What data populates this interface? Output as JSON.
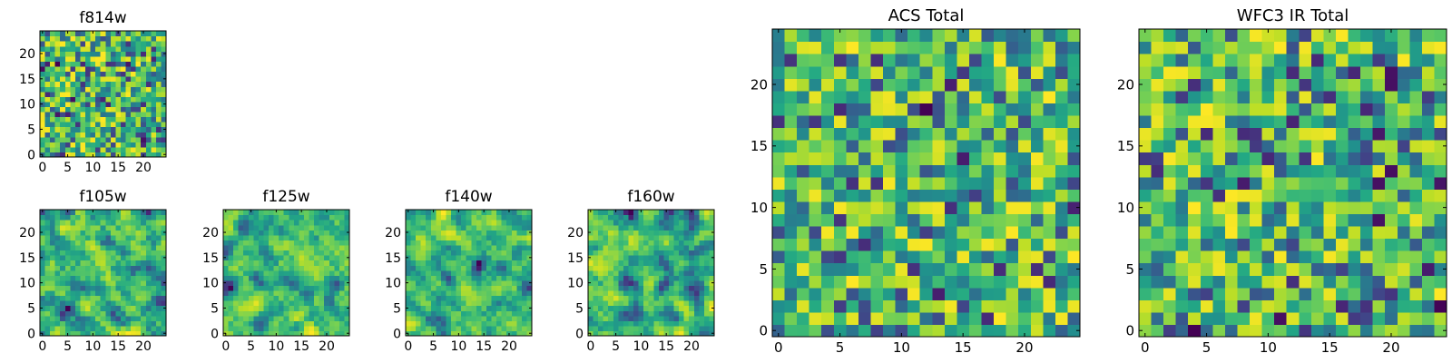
{
  "chart_data": [
    {
      "type": "heatmap",
      "title": "f814w",
      "grid_size": 25,
      "xticks": [
        0,
        5,
        10,
        15,
        20
      ],
      "yticks": [
        0,
        5,
        10,
        15,
        20
      ],
      "xlim": [
        -0.5,
        24.5
      ],
      "ylim": [
        -0.5,
        24.5
      ],
      "colormap": "viridis",
      "smoothing": 0.0,
      "seed": 814
    },
    {
      "type": "heatmap",
      "title": "f105w",
      "grid_size": 25,
      "xticks": [
        0,
        5,
        10,
        15,
        20
      ],
      "yticks": [
        0,
        5,
        10,
        15,
        20
      ],
      "xlim": [
        -0.5,
        24.5
      ],
      "ylim": [
        -0.5,
        24.5
      ],
      "colormap": "viridis",
      "smoothing": 0.55,
      "seed": 105
    },
    {
      "type": "heatmap",
      "title": "f125w",
      "grid_size": 25,
      "xticks": [
        0,
        5,
        10,
        15,
        20
      ],
      "yticks": [
        0,
        5,
        10,
        15,
        20
      ],
      "xlim": [
        -0.5,
        24.5
      ],
      "ylim": [
        -0.5,
        24.5
      ],
      "colormap": "viridis",
      "smoothing": 0.6,
      "seed": 125
    },
    {
      "type": "heatmap",
      "title": "f140w",
      "grid_size": 25,
      "xticks": [
        0,
        5,
        10,
        15,
        20
      ],
      "yticks": [
        0,
        5,
        10,
        15,
        20
      ],
      "xlim": [
        -0.5,
        24.5
      ],
      "ylim": [
        -0.5,
        24.5
      ],
      "colormap": "viridis",
      "smoothing": 0.6,
      "seed": 140
    },
    {
      "type": "heatmap",
      "title": "f160w",
      "grid_size": 25,
      "xticks": [
        0,
        5,
        10,
        15,
        20
      ],
      "yticks": [
        0,
        5,
        10,
        15,
        20
      ],
      "xlim": [
        -0.5,
        24.5
      ],
      "ylim": [
        -0.5,
        24.5
      ],
      "colormap": "viridis",
      "smoothing": 0.65,
      "seed": 160
    },
    {
      "type": "heatmap",
      "title": "ACS Total",
      "grid_size": 25,
      "xticks": [
        0,
        5,
        10,
        15,
        20
      ],
      "yticks": [
        0,
        5,
        10,
        15,
        20
      ],
      "xlim": [
        -0.5,
        24.5
      ],
      "ylim": [
        -0.5,
        24.5
      ],
      "colormap": "viridis",
      "smoothing": 0.0,
      "seed": 2001
    },
    {
      "type": "heatmap",
      "title": "WFC3 IR Total",
      "grid_size": 25,
      "xticks": [
        0,
        5,
        10,
        15,
        20
      ],
      "yticks": [
        0,
        5,
        10,
        15,
        20
      ],
      "xlim": [
        -0.5,
        24.5
      ],
      "ylim": [
        -0.5,
        24.5
      ],
      "colormap": "viridis",
      "smoothing": 0.0,
      "seed": 3001
    }
  ]
}
